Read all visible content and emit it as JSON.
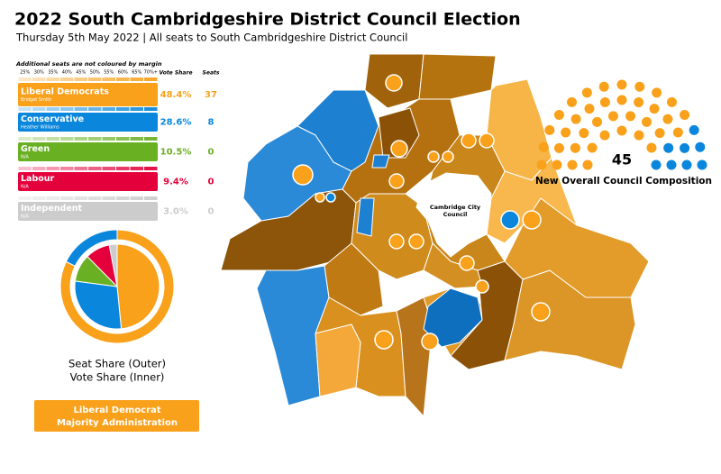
{
  "header": {
    "title": "2022 South Cambridgeshire District Council Election",
    "subtitle": "Thursday 5th May 2022 | All seats to South Cambridgeshire District Council"
  },
  "legend": {
    "note": "Additional seats are not coloured by margin",
    "margin_scale": [
      "25%",
      "30%",
      "35%",
      "40%",
      "45%",
      "50%",
      "55%",
      "60%",
      "65%",
      "70%+"
    ],
    "columns": {
      "vote_share": "Vote Share",
      "seats": "Seats"
    }
  },
  "parties": [
    {
      "name": "Liberal Democrats",
      "leader": "Bridget Smith",
      "color": "#f9a11b",
      "vote_share": 48.4,
      "vote_share_label": "48.4%",
      "seats": 37
    },
    {
      "name": "Conservative",
      "leader": "Heather Williams",
      "color": "#0a87dc",
      "vote_share": 28.6,
      "vote_share_label": "28.6%",
      "seats": 8
    },
    {
      "name": "Green",
      "leader": "N/A",
      "color": "#6ab023",
      "vote_share": 10.5,
      "vote_share_label": "10.5%",
      "seats": 0
    },
    {
      "name": "Labour",
      "leader": "N/A",
      "color": "#e4003b",
      "vote_share": 9.4,
      "vote_share_label": "9.4%",
      "seats": 0
    },
    {
      "name": "Independent",
      "leader": "N/A",
      "color": "#cccccc",
      "vote_share": 3.0,
      "vote_share_label": "3.0%",
      "seats": 0
    }
  ],
  "composition": {
    "total": 45,
    "label": "New Overall Council Composition"
  },
  "donut": {
    "outer": "Seat Share (Outer)",
    "inner": "Vote Share (Inner)"
  },
  "result": {
    "line1": "Liberal Democrat",
    "line2": "Majority Administration"
  },
  "map": {
    "city_label": "Cambridge City Council"
  }
}
